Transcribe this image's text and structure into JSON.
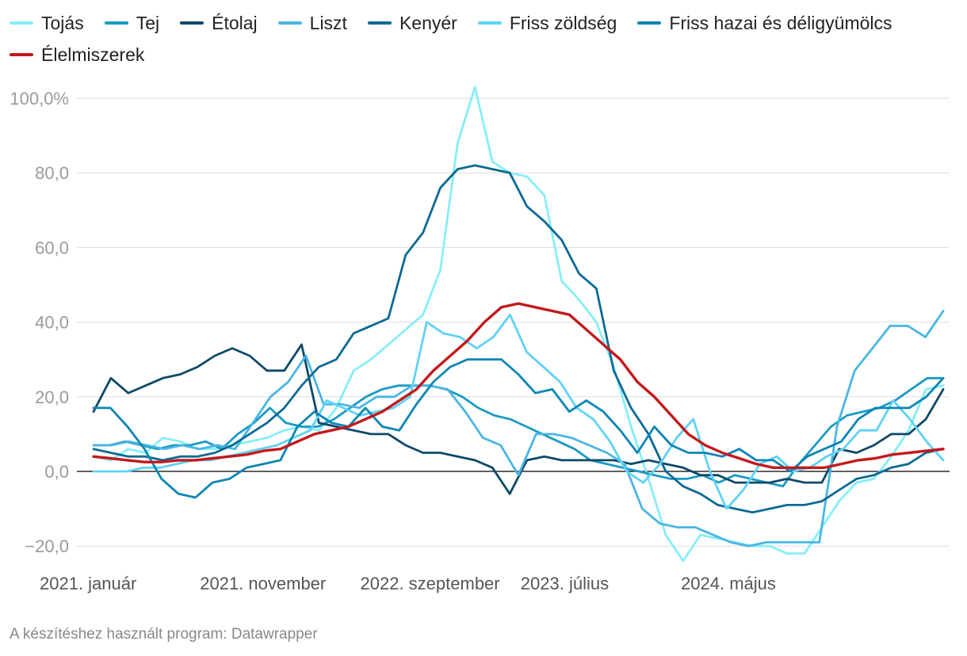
{
  "chart_data": {
    "type": "line",
    "title": "",
    "xlabel": "",
    "ylabel": "",
    "ylim": [
      -22,
      104
    ],
    "yticks": [
      -20,
      0,
      20,
      40,
      60,
      80,
      100
    ],
    "ytick_labels": [
      "−20,0",
      "0,0",
      "20,0",
      "40,0",
      "60,0",
      "80,0",
      "100,0%"
    ],
    "x_count": 54,
    "x_tick_positions": [
      0,
      10,
      20,
      30,
      40
    ],
    "x_tick_labels": [
      "2021. január",
      "2021. november",
      "2022. szeptember",
      "2023. július",
      "2024. május"
    ],
    "series": [
      {
        "name": "Tojás",
        "color": "#86eef7",
        "values": [
          4,
          3,
          6,
          5,
          9,
          8,
          6,
          6,
          7,
          8,
          9,
          11,
          12,
          11,
          17,
          27,
          30,
          34,
          38,
          42,
          54,
          88,
          103,
          83,
          80,
          79,
          74,
          51,
          46,
          40,
          28,
          12,
          -2,
          -17,
          -24,
          -17,
          -18,
          -19,
          -20,
          -20,
          -22,
          -22,
          -15,
          -8,
          -3,
          -2,
          4,
          11,
          22,
          23
        ]
      },
      {
        "name": "Tej",
        "color": "#1b9ac4",
        "values": [
          7,
          7,
          8,
          7,
          6,
          7,
          7,
          8,
          6,
          10,
          13,
          17,
          13,
          12,
          12,
          14,
          17,
          20,
          22,
          23,
          23,
          23,
          22,
          20,
          17,
          15,
          14,
          12,
          10,
          8,
          6,
          3,
          2,
          1,
          0,
          -1,
          -2,
          -2,
          -1,
          -3,
          -1,
          -2,
          -3,
          -4,
          2,
          7,
          12,
          15,
          16,
          17,
          19,
          22,
          25,
          25
        ]
      },
      {
        "name": "Étolaj",
        "color": "#0d4968",
        "values": [
          16,
          25,
          21,
          23,
          25,
          26,
          28,
          31,
          33,
          31,
          27,
          27,
          34,
          13,
          12,
          11,
          10,
          10,
          7,
          5,
          5,
          4,
          3,
          1,
          -6,
          3,
          4,
          3,
          3,
          3,
          3,
          2,
          3,
          2,
          1,
          -1,
          -1,
          -3,
          -3,
          -3,
          -2,
          -3,
          -3,
          6,
          5,
          7,
          10,
          10,
          14,
          22
        ]
      },
      {
        "name": "Liszt",
        "color": "#49b6e2",
        "values": [
          7,
          7,
          8,
          7,
          6,
          7,
          6,
          7,
          6,
          13,
          20,
          24,
          31,
          18,
          18,
          17,
          20,
          20,
          23,
          23,
          22,
          16,
          9,
          7,
          -1,
          10,
          10,
          9,
          7,
          5,
          2,
          -10,
          -14,
          -15,
          -15,
          -17,
          -19,
          -20,
          -19,
          -19,
          -19,
          -19,
          12,
          27,
          33,
          39,
          39,
          36,
          43
        ]
      },
      {
        "name": "Kenyér",
        "color": "#0b6a93",
        "values": [
          6,
          5,
          4,
          4,
          3,
          4,
          4,
          5,
          7,
          10,
          13,
          17,
          23,
          28,
          30,
          37,
          39,
          41,
          58,
          64,
          76,
          81,
          82,
          81,
          80,
          71,
          67,
          62,
          53,
          49,
          27,
          17,
          10,
          0,
          -4,
          -6,
          -9,
          -10,
          -11,
          -10,
          -9,
          -9,
          -8,
          -5,
          -2,
          -1,
          1,
          2,
          5,
          6
        ]
      },
      {
        "name": "Friss zöldség",
        "color": "#5fd2f5",
        "values": [
          0,
          0,
          0,
          1,
          1,
          2,
          3,
          3,
          4,
          5,
          6,
          7,
          9,
          11,
          19,
          17,
          15,
          16,
          17,
          20,
          40,
          37,
          36,
          33,
          36,
          42,
          32,
          28,
          24,
          17,
          14,
          8,
          0,
          -3,
          2,
          9,
          14,
          0,
          -10,
          -5,
          2,
          4,
          0,
          1,
          4,
          6,
          11,
          11,
          19,
          14,
          8,
          3
        ]
      },
      {
        "name": "Friss hazai és déligyümölcs",
        "color": "#0c86b4",
        "values": [
          17,
          17,
          12,
          6,
          -2,
          -6,
          -7,
          -3,
          -2,
          1,
          2,
          3,
          12,
          16,
          13,
          12,
          17,
          12,
          11,
          18,
          24,
          28,
          30,
          30,
          30,
          26,
          21,
          22,
          16,
          19,
          16,
          11,
          5,
          12,
          7,
          5,
          5,
          4,
          6,
          3,
          3,
          0,
          4,
          6,
          8,
          14,
          17,
          17,
          17,
          20,
          25
        ]
      },
      {
        "name": "Élelmiszerek",
        "color": "#c4181d",
        "values": [
          4,
          3.5,
          3,
          2.5,
          2.5,
          3,
          3,
          3.5,
          4,
          4.5,
          5.5,
          6,
          8,
          10,
          11,
          12,
          14,
          16,
          19,
          22,
          27,
          31,
          35,
          40,
          44,
          45,
          44,
          43,
          42,
          38,
          34,
          30,
          24,
          20,
          15,
          10,
          7,
          5,
          3.5,
          2,
          1,
          1,
          1,
          1,
          2,
          3,
          3.5,
          4.5,
          5,
          5.5,
          6
        ]
      }
    ]
  },
  "footer": {
    "text": "A készítéshez használt program: Datawrapper"
  }
}
